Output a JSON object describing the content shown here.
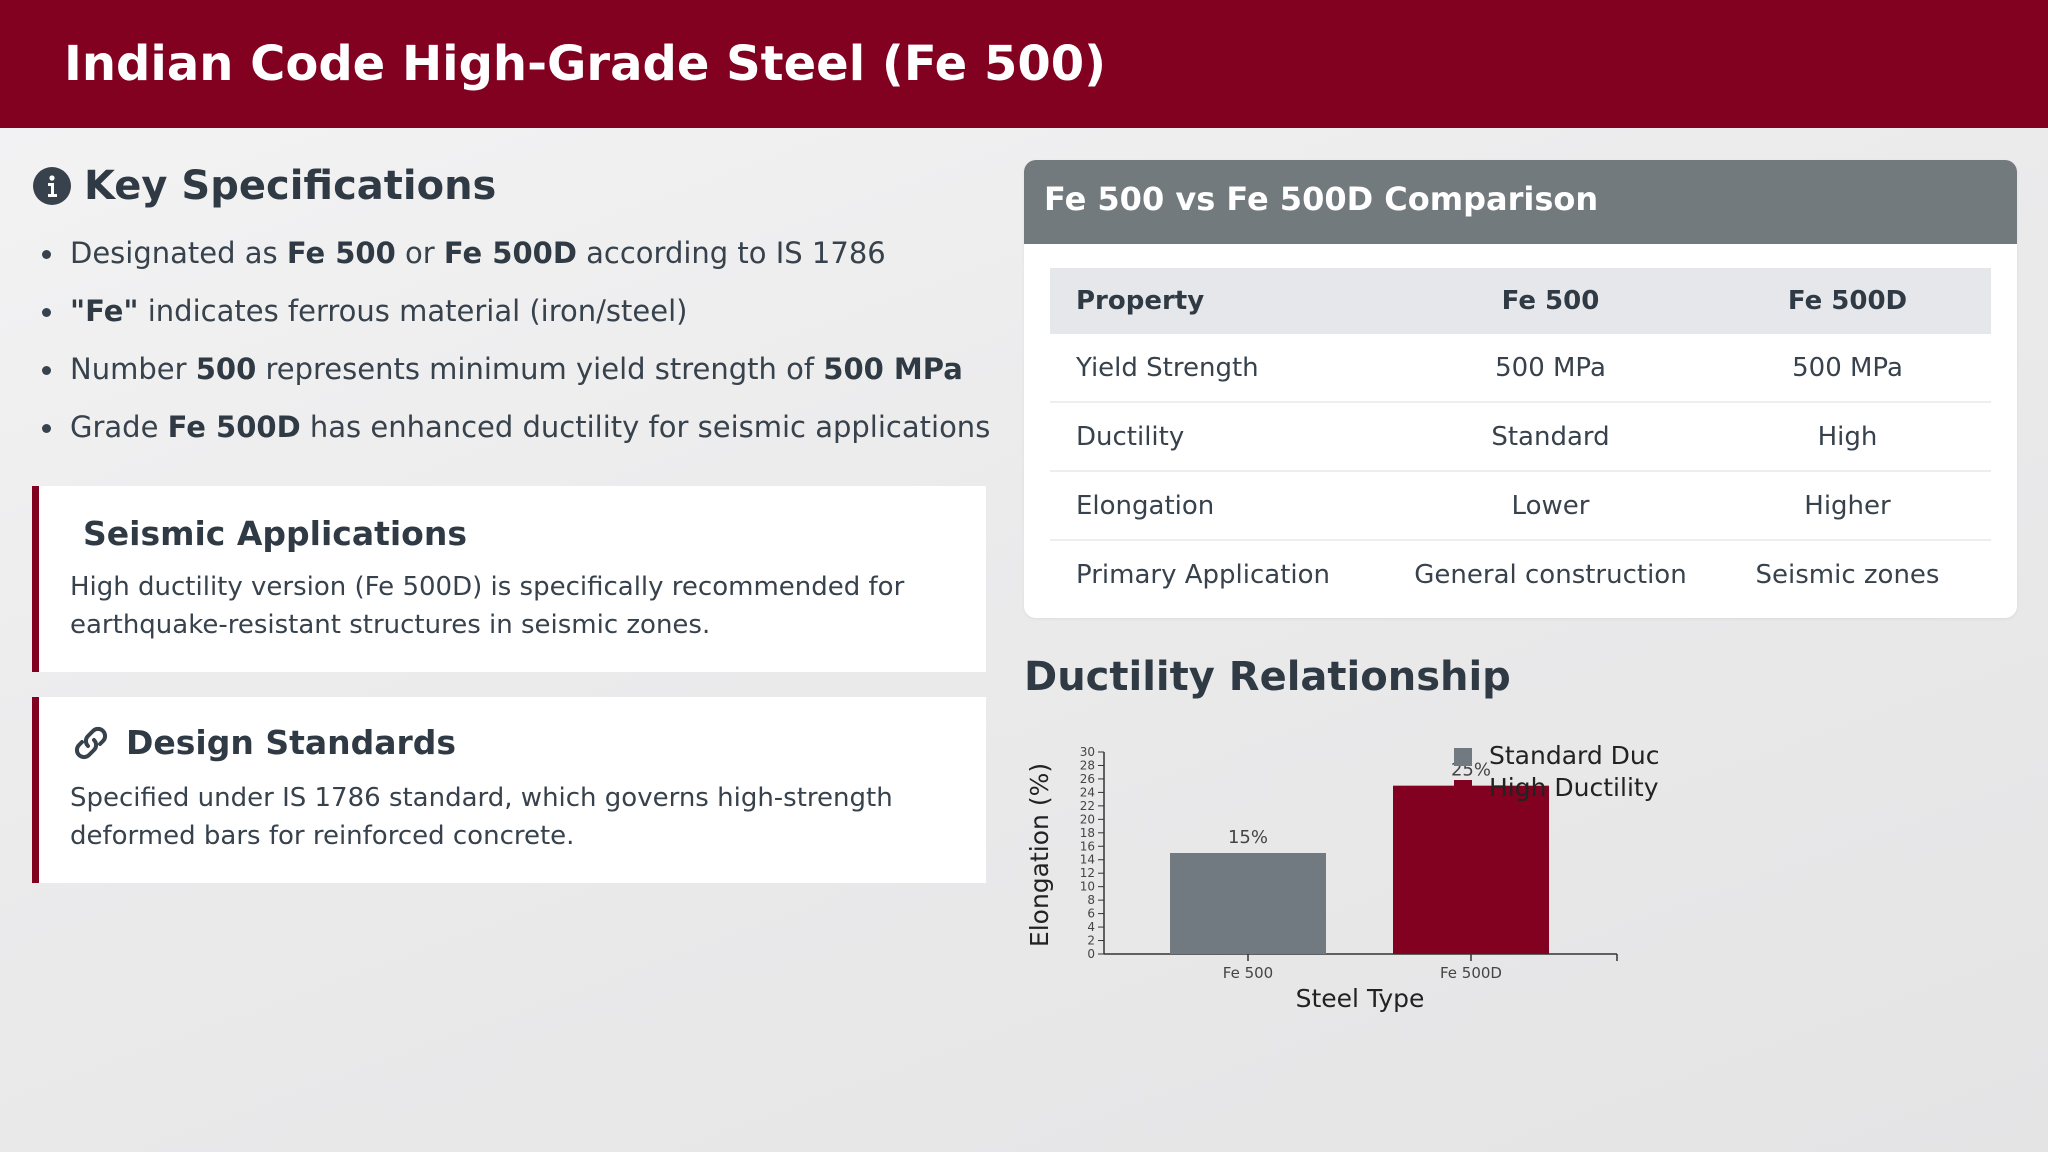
{
  "header": {
    "title": "Indian Code High-Grade Steel (Fe 500)"
  },
  "key_specs": {
    "title": "Key Specifications",
    "icon": "info-icon",
    "items": [
      {
        "parts": [
          {
            "t": "Designated as "
          },
          {
            "t": "Fe 500",
            "b": true
          },
          {
            "t": " or "
          },
          {
            "t": "Fe 500D",
            "b": true
          },
          {
            "t": " according to IS 1786"
          }
        ]
      },
      {
        "parts": [
          {
            "t": "\"Fe\"",
            "b": true
          },
          {
            "t": " indicates ferrous material (iron/steel)"
          }
        ]
      },
      {
        "parts": [
          {
            "t": "Number "
          },
          {
            "t": "500",
            "b": true
          },
          {
            "t": " represents minimum yield strength of "
          },
          {
            "t": "500 MPa",
            "b": true
          }
        ]
      },
      {
        "parts": [
          {
            "t": "Grade "
          },
          {
            "t": "Fe 500D",
            "b": true
          },
          {
            "t": " has enhanced ductility for seismic applications"
          }
        ]
      }
    ]
  },
  "seismic": {
    "title": "Seismic Applications",
    "text": "High ductility version (Fe 500D) is specifically recommended for earthquake-resistant structures in seismic zones."
  },
  "design": {
    "title": "Design Standards",
    "icon": "link-icon",
    "text": "Specified under IS 1786 standard, which governs high-strength deformed bars for reinforced concrete."
  },
  "comparison": {
    "title": "Fe 500 vs Fe 500D Comparison",
    "headers": [
      "Property",
      "Fe 500",
      "Fe 500D"
    ],
    "rows": [
      [
        "Yield Strength",
        "500 MPa",
        "500 MPa"
      ],
      [
        "Ductility",
        "Standard",
        "High"
      ],
      [
        "Elongation",
        "Lower",
        "Higher"
      ],
      [
        "Primary Application",
        "General construction",
        "Seismic zones"
      ]
    ]
  },
  "ductility": {
    "title": "Ductility Relationship"
  },
  "chart_data": {
    "type": "bar",
    "categories": [
      "Fe 500",
      "Fe 500D"
    ],
    "values": [
      15,
      25
    ],
    "value_labels": [
      "15%",
      "25%"
    ],
    "xlabel": "Steel Type",
    "ylabel": "Elongation (%)",
    "ylim": [
      0,
      30
    ],
    "yticks": [
      0,
      2,
      4,
      6,
      8,
      10,
      12,
      14,
      16,
      18,
      20,
      22,
      24,
      26,
      28,
      30
    ],
    "bar_colors": [
      "#717a80",
      "#820020"
    ],
    "legend": {
      "placement": "top-right",
      "entries": [
        {
          "label": "Standard Duc",
          "color": "#717a80"
        },
        {
          "label": "High Ductility",
          "color": "#820020"
        }
      ]
    },
    "grid": false
  }
}
